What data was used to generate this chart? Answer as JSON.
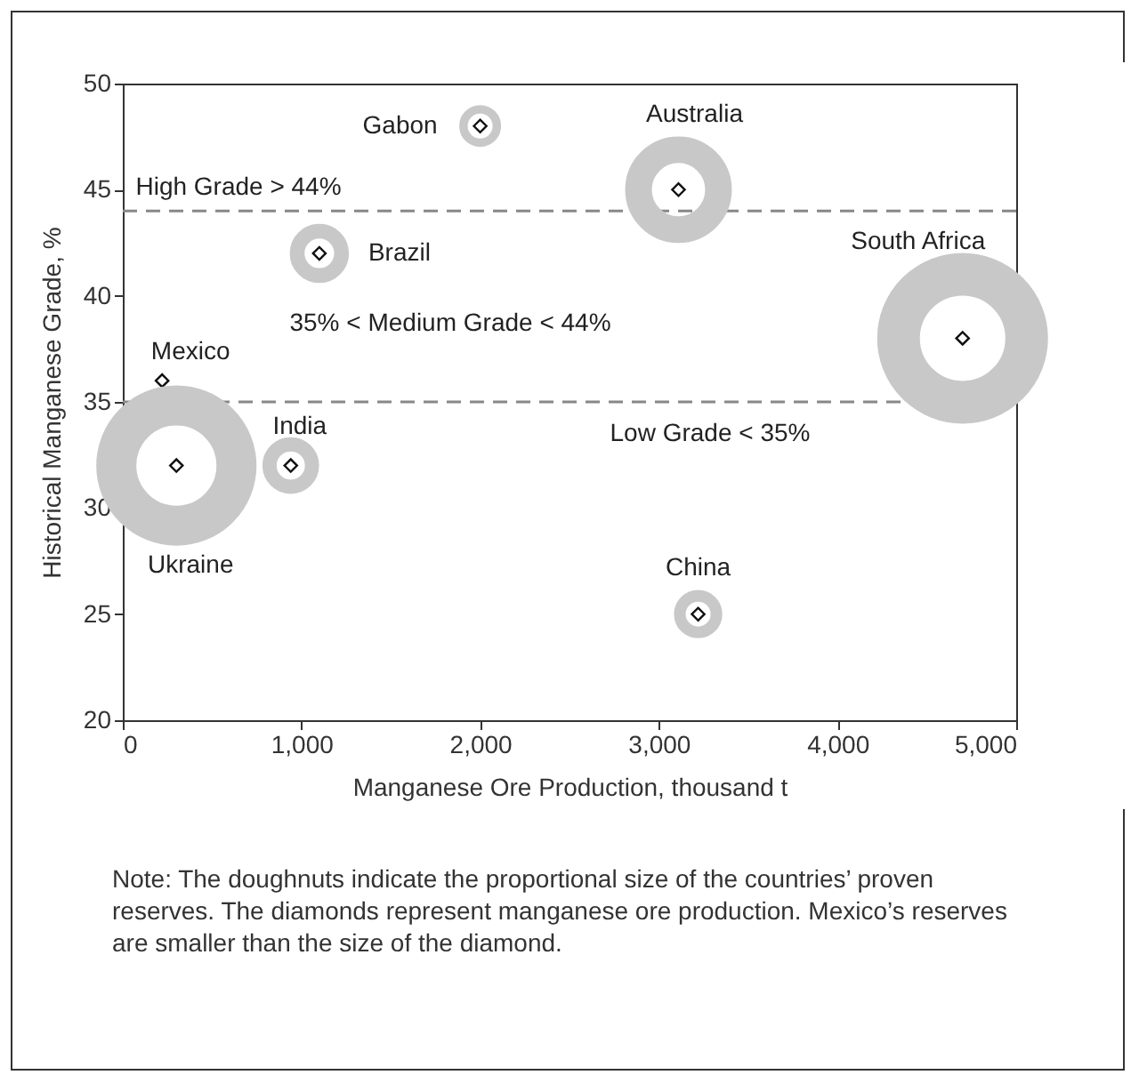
{
  "chart_data": {
    "type": "bubble",
    "xlabel": "Manganese Ore Production, thousand t",
    "ylabel": "Historical Manganese Grade, %",
    "xlim": [
      0,
      5000
    ],
    "xticks": [
      0,
      {
        "value": 1000,
        "label": "1,000"
      },
      {
        "value": 2000,
        "label": "2,000"
      },
      {
        "value": 3000,
        "label": "3,000"
      },
      {
        "value": 4000,
        "label": "4,000"
      },
      {
        "value": 5000,
        "label": "5,000"
      }
    ],
    "ylim": [
      20,
      50
    ],
    "yticks": [
      20,
      25,
      30,
      35,
      40,
      45,
      50
    ],
    "grid": false,
    "series": [
      {
        "name": "Gabon",
        "color": "#c8c8c8",
        "x": [
          2000
        ],
        "values": [
          48
        ],
        "sizes": [
          0.06
        ]
      },
      {
        "name": "Australia",
        "color": "#c8c8c8",
        "x": [
          3110
        ],
        "values": [
          45
        ],
        "sizes": [
          0.39
        ]
      },
      {
        "name": "Brazil",
        "color": "#c8c8c8",
        "x": [
          1100
        ],
        "values": [
          42
        ],
        "sizes": [
          0.12
        ]
      },
      {
        "name": "South Africa",
        "color": "#c8c8c8",
        "x": [
          4700
        ],
        "values": [
          38
        ],
        "sizes": [
          1
        ]
      },
      {
        "name": "Mexico",
        "type": "scatter",
        "marker": "diamond",
        "color": "#111111",
        "x": [
          220
        ],
        "values": [
          36
        ]
      },
      {
        "name": "Ukraine",
        "color": "#c8c8c8",
        "x": [
          300
        ],
        "values": [
          32
        ],
        "sizes": [
          0.88
        ]
      },
      {
        "name": "India",
        "color": "#c8c8c8",
        "x": [
          940
        ],
        "values": [
          32
        ],
        "sizes": [
          0.11
        ]
      },
      {
        "name": "China",
        "color": "#c8c8c8",
        "x": [
          3220
        ],
        "values": [
          25
        ],
        "sizes": [
          0.08
        ]
      },
      {
        "type": "scatter",
        "marker": "diamond",
        "color": "#111111",
        "x": [
          2000,
          3110,
          1100,
          4700,
          300,
          940,
          3220
        ],
        "values": [
          48,
          45,
          42,
          38,
          32,
          32,
          25
        ]
      }
    ],
    "ref_lines": [
      {
        "axis": "y",
        "value": 44,
        "color": "#888888",
        "line_style": "dashed",
        "label": "High Grade > 44%"
      },
      {
        "axis": "y",
        "value": 35,
        "color": "#888888",
        "line_style": "dashed",
        "label": "Low Grade < 35%"
      }
    ],
    "annotations": [
      "35% < Medium Grade < 44%",
      "Note: The doughnuts indicate the proportional size of the countries’ proven reserves. The diamonds represent manganese ore production. Mexico’s reserves are smaller than the size of the diamond."
    ]
  }
}
